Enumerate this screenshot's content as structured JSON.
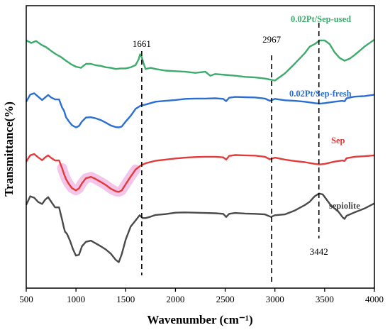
{
  "chart_data": {
    "type": "line",
    "xlabel": "Wavenumber (cm⁻¹)",
    "ylabel": "Transmittance(%)",
    "xlim": [
      500,
      4000
    ],
    "xticks": [
      500,
      1000,
      1500,
      2000,
      2500,
      3000,
      3500,
      4000
    ],
    "yticks": false,
    "grid": false,
    "colors": {
      "used": "#3dab6b",
      "fresh": "#2a6fd1",
      "sep": "#e23b3b",
      "sepiolite": "#4a4a4a",
      "highlight": "#f2bfe6"
    },
    "annotations": [
      {
        "label": "1661",
        "x": 1661
      },
      {
        "label": "2967",
        "x": 2967
      },
      {
        "label": "3442",
        "x": 3442
      }
    ],
    "series": [
      {
        "name": "0.02Pt/Sep-used",
        "key": "used",
        "x": [
          500,
          550,
          600,
          650,
          700,
          750,
          800,
          850,
          900,
          950,
          1000,
          1050,
          1100,
          1150,
          1200,
          1250,
          1300,
          1350,
          1400,
          1450,
          1500,
          1550,
          1600,
          1630,
          1645,
          1661,
          1680,
          1700,
          1750,
          1800,
          1900,
          2000,
          2100,
          2200,
          2300,
          2350,
          2400,
          2500,
          2600,
          2700,
          2800,
          2900,
          3000,
          3100,
          3200,
          3300,
          3350,
          3400,
          3450,
          3500,
          3550,
          3600,
          3650,
          3700,
          3750,
          3800,
          3850,
          3900,
          4000
        ],
        "y": [
          87.7,
          86.8,
          87.5,
          86.2,
          85.3,
          84,
          82.8,
          81.8,
          80.5,
          79.3,
          78.4,
          78,
          79.4,
          79.4,
          78.9,
          78.7,
          78.2,
          78,
          77.6,
          77.8,
          77.8,
          78.2,
          79,
          81,
          82.8,
          81.8,
          79.5,
          77.6,
          78,
          77.6,
          77,
          76.8,
          76.6,
          76.2,
          76.6,
          75.2,
          75.8,
          75.5,
          75.2,
          74.8,
          74.6,
          74.2,
          73.5,
          76,
          79.5,
          83.2,
          85.5,
          86.4,
          87.7,
          87.7,
          86.4,
          83.5,
          81.5,
          80.5,
          81.2,
          82.5,
          84,
          85.5,
          88
        ]
      },
      {
        "name": "0.02Pt/Sep-fresh",
        "key": "fresh",
        "x": [
          500,
          540,
          580,
          620,
          660,
          690,
          720,
          750,
          790,
          830,
          860,
          880,
          900,
          930,
          960,
          1000,
          1030,
          1060,
          1100,
          1150,
          1200,
          1250,
          1300,
          1350,
          1400,
          1430,
          1460,
          1500,
          1550,
          1600,
          1650,
          1700,
          1800,
          1900,
          2000,
          2100,
          2200,
          2300,
          2400,
          2480,
          2510,
          2540,
          2600,
          2700,
          2800,
          2900,
          2950,
          3000,
          3100,
          3200,
          3300,
          3400,
          3450,
          3500,
          3600,
          3680,
          3700,
          3720,
          3800,
          3900,
          4000
        ],
        "y": [
          66,
          68.5,
          69,
          67.8,
          66.6,
          67.5,
          68.4,
          67.5,
          66.8,
          66.8,
          64,
          62.8,
          60.5,
          59,
          57.7,
          56.9,
          57.4,
          59,
          60.4,
          60.5,
          60.1,
          59.5,
          58.6,
          57.6,
          57,
          56.9,
          57.2,
          59,
          61,
          63.5,
          64.6,
          65,
          66,
          66.3,
          66.6,
          67,
          67.1,
          67.1,
          67.2,
          67,
          66.2,
          67.4,
          67.7,
          67.6,
          67.5,
          67.1,
          66.3,
          67,
          66.5,
          66.3,
          66,
          65.5,
          65.3,
          65.5,
          66,
          66.3,
          66.1,
          67.2,
          67.8,
          68,
          68.5
        ]
      },
      {
        "name": "Sep",
        "key": "sep",
        "x": [
          500,
          540,
          580,
          620,
          660,
          690,
          720,
          750,
          790,
          830,
          860,
          880,
          900,
          930,
          960,
          1000,
          1030,
          1060,
          1100,
          1150,
          1200,
          1250,
          1300,
          1350,
          1400,
          1430,
          1460,
          1500,
          1550,
          1600,
          1650,
          1700,
          1800,
          1900,
          2000,
          2100,
          2200,
          2300,
          2400,
          2480,
          2510,
          2540,
          2600,
          2700,
          2800,
          2900,
          2950,
          3000,
          3100,
          3200,
          3300,
          3400,
          3450,
          3500,
          3600,
          3680,
          3700,
          3720,
          3800,
          3900,
          4000
        ],
        "y": [
          44.8,
          47,
          47.5,
          46.3,
          45.3,
          46.3,
          47,
          46.1,
          45.2,
          45.2,
          42.5,
          40.4,
          38.6,
          36.8,
          35.4,
          34.6,
          35.3,
          37.1,
          38.9,
          39.4,
          38.6,
          37.6,
          36.5,
          35.2,
          34.3,
          34.1,
          34.6,
          36.8,
          39.5,
          42,
          43.4,
          44.2,
          45.1,
          45.5,
          45.9,
          46.2,
          46.4,
          46.5,
          46.5,
          46.3,
          45.5,
          46.8,
          47.1,
          47,
          46.9,
          46.5,
          45.6,
          46.2,
          45.5,
          45,
          44.6,
          44,
          43.8,
          44,
          44.8,
          45.2,
          45,
          46,
          46.5,
          46.7,
          47
        ]
      },
      {
        "name": "sepiolite",
        "key": "sepiolite",
        "x": [
          500,
          540,
          580,
          620,
          660,
          690,
          720,
          750,
          790,
          830,
          860,
          880,
          890,
          910,
          940,
          970,
          1000,
          1030,
          1060,
          1100,
          1150,
          1200,
          1250,
          1300,
          1350,
          1400,
          1430,
          1460,
          1500,
          1550,
          1600,
          1640,
          1670,
          1700,
          1750,
          1800,
          1900,
          2000,
          2100,
          2200,
          2300,
          2400,
          2480,
          2510,
          2540,
          2600,
          2700,
          2800,
          2900,
          2960,
          3000,
          3100,
          3200,
          3300,
          3350,
          3400,
          3442,
          3480,
          3520,
          3560,
          3600,
          3640,
          3680,
          3700,
          3720,
          3800,
          3900,
          4000
        ],
        "y": [
          29.5,
          32.5,
          32,
          30.5,
          29.8,
          31.3,
          32.2,
          30.6,
          28.6,
          28.6,
          24.3,
          21.2,
          20,
          19.2,
          16.8,
          13.8,
          11.5,
          11.8,
          14.8,
          16.4,
          16.8,
          15.8,
          14.8,
          13.7,
          12.2,
          10,
          9.2,
          12,
          17.2,
          21.8,
          24,
          25.8,
          24.8,
          24.8,
          25.3,
          25.9,
          26.2,
          26.7,
          26.8,
          26.7,
          26.6,
          26.5,
          26.3,
          25.2,
          26.3,
          26.6,
          26.4,
          26.3,
          26.1,
          25.2,
          25.8,
          26.1,
          27.5,
          29.4,
          30.6,
          32.5,
          33.5,
          33.2,
          31.3,
          29.4,
          28.2,
          27,
          25.1,
          24.5,
          25.6,
          26.8,
          28.2,
          30
        ]
      }
    ]
  },
  "legend": {
    "used": "0.02Pt/Sep-used",
    "fresh": "0.02Pt/Sep-fresh",
    "sep": "Sep",
    "sepiolite": "sepiolite"
  }
}
